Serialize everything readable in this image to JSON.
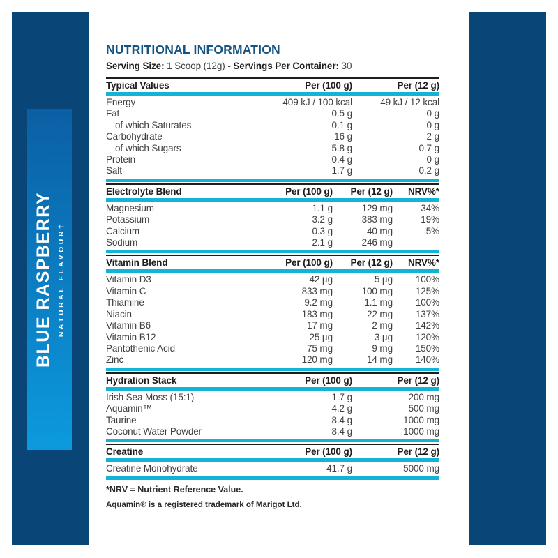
{
  "colors": {
    "navy_bar": "#0a4577",
    "title_blue": "#155380",
    "accent_cyan": "#12b3d4",
    "rule_dark": "#1d1d1b",
    "panel_gradient_top": "#0b5fa4",
    "panel_gradient_bottom": "#0c9ade"
  },
  "flavor_panel": {
    "title": "BLUE RASPBERRY",
    "subtitle": "NATURAL FLAVOUR†"
  },
  "header": {
    "title": "NUTRITIONAL INFORMATION",
    "serving_size_label": "Serving Size:",
    "serving_size_value": "1 Scoop (12g)",
    "separator": "-",
    "servings_label": "Servings Per Container:",
    "servings_value": "30"
  },
  "sections": [
    {
      "name": "typical-values",
      "columns": 3,
      "header": {
        "col1": "Typical Values",
        "col2": "Per (100 g)",
        "col3": "Per (12 g)"
      },
      "rows": [
        {
          "label": "Energy",
          "indent": false,
          "v1": "409 kJ / 100 kcal",
          "v2": "49 kJ / 12 kcal"
        },
        {
          "label": "Fat",
          "indent": false,
          "v1": "0.5 g",
          "v2": "0 g"
        },
        {
          "label": "of which Saturates",
          "indent": true,
          "v1": "0.1 g",
          "v2": "0 g"
        },
        {
          "label": "Carbohydrate",
          "indent": false,
          "v1": "16 g",
          "v2": "2 g"
        },
        {
          "label": "of which Sugars",
          "indent": true,
          "v1": "5.8 g",
          "v2": "0.7 g"
        },
        {
          "label": "Protein",
          "indent": false,
          "v1": "0.4 g",
          "v2": "0 g"
        },
        {
          "label": "Salt",
          "indent": false,
          "v1": "1.7 g",
          "v2": "0.2 g"
        }
      ]
    },
    {
      "name": "electrolyte-blend",
      "columns": 4,
      "header": {
        "col1": "Electrolyte Blend",
        "col2": "Per (100 g)",
        "col3": "Per (12 g)",
        "col4": "NRV%*"
      },
      "rows": [
        {
          "label": "Magnesium",
          "indent": false,
          "v1": "1.1 g",
          "v2": "129 mg",
          "v3": "34%"
        },
        {
          "label": "Potassium",
          "indent": false,
          "v1": "3.2 g",
          "v2": "383 mg",
          "v3": "19%"
        },
        {
          "label": "Calcium",
          "indent": false,
          "v1": "0.3 g",
          "v2": "40 mg",
          "v3": "5%"
        },
        {
          "label": "Sodium",
          "indent": false,
          "v1": "2.1 g",
          "v2": "246 mg",
          "v3": ""
        }
      ]
    },
    {
      "name": "vitamin-blend",
      "columns": 4,
      "header": {
        "col1": "Vitamin Blend",
        "col2": "Per (100 g)",
        "col3": "Per (12 g)",
        "col4": "NRV%*"
      },
      "rows": [
        {
          "label": "Vitamin D3",
          "indent": false,
          "v1": "42 µg",
          "v2": "5 µg",
          "v3": "100%"
        },
        {
          "label": "Vitamin C",
          "indent": false,
          "v1": "833 mg",
          "v2": "100 mg",
          "v3": "125%"
        },
        {
          "label": "Thiamine",
          "indent": false,
          "v1": "9.2 mg",
          "v2": "1.1 mg",
          "v3": "100%"
        },
        {
          "label": "Niacin",
          "indent": false,
          "v1": "183 mg",
          "v2": "22 mg",
          "v3": "137%"
        },
        {
          "label": "Vitamin B6",
          "indent": false,
          "v1": "17 mg",
          "v2": "2 mg",
          "v3": "142%"
        },
        {
          "label": "Vitamin B12",
          "indent": false,
          "v1": "25 µg",
          "v2": "3 µg",
          "v3": "120%"
        },
        {
          "label": "Pantothenic Acid",
          "indent": false,
          "v1": "75 mg",
          "v2": "9 mg",
          "v3": "150%"
        },
        {
          "label": "Zinc",
          "indent": false,
          "v1": "120 mg",
          "v2": "14 mg",
          "v3": "140%"
        }
      ]
    },
    {
      "name": "hydration-stack",
      "columns": 3,
      "header": {
        "col1": "Hydration Stack",
        "col2": "Per (100 g)",
        "col3": "Per (12 g)"
      },
      "rows": [
        {
          "label": "Irish Sea Moss (15:1)",
          "indent": false,
          "v1": "1.7 g",
          "v2": "200 mg"
        },
        {
          "label": "Aquamin™",
          "indent": false,
          "v1": "4.2 g",
          "v2": "500 mg"
        },
        {
          "label": "Taurine",
          "indent": false,
          "v1": "8.4 g",
          "v2": "1000 mg"
        },
        {
          "label": "Coconut Water Powder",
          "indent": false,
          "v1": "8.4 g",
          "v2": "1000 mg"
        }
      ]
    },
    {
      "name": "creatine",
      "columns": 3,
      "header": {
        "col1": "Creatine",
        "col2": "Per (100 g)",
        "col3": "Per (12 g)"
      },
      "rows": [
        {
          "label": "Creatine Monohydrate",
          "indent": false,
          "v1": "41.7 g",
          "v2": "5000 mg"
        }
      ]
    }
  ],
  "footnotes": {
    "nrv": "*NRV = Nutrient Reference Value.",
    "aquamin": "Aquamin® is a registered trademark of Marigot Ltd."
  }
}
